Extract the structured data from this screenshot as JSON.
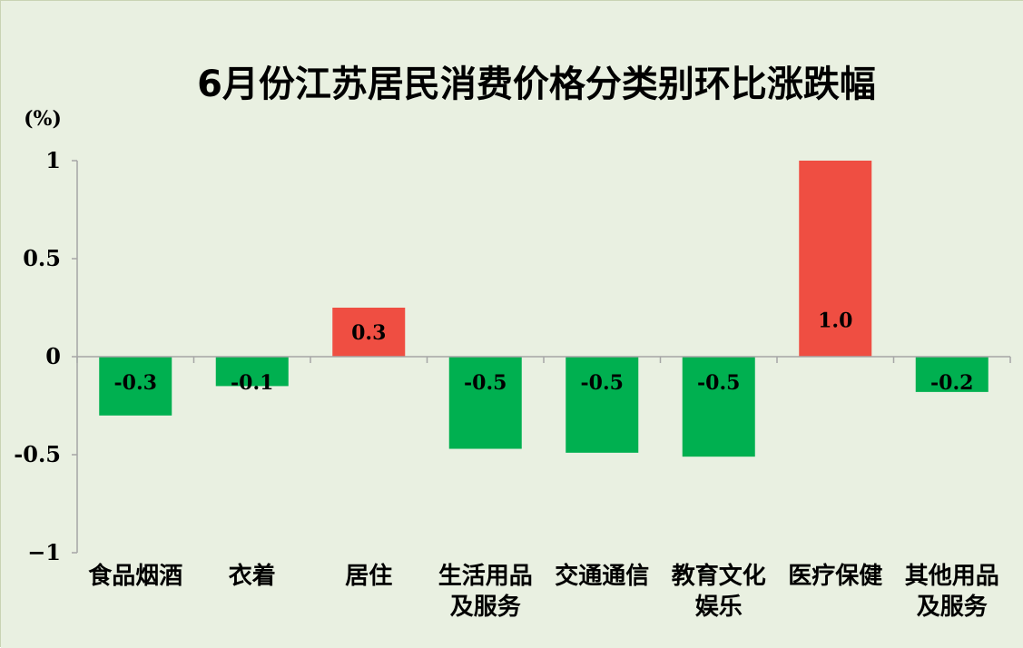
{
  "chart_data": {
    "type": "bar",
    "title": "6月份江苏居民消费价格分类别环比涨跌幅",
    "ylabel": "(%)",
    "categories": [
      [
        "食品烟酒"
      ],
      [
        "衣着"
      ],
      [
        "居住"
      ],
      [
        "生活用品",
        "及服务"
      ],
      [
        "交通通信"
      ],
      [
        "教育文化",
        "娱乐"
      ],
      [
        "医疗保健"
      ],
      [
        "其他用品",
        "及服务"
      ]
    ],
    "values": [
      -0.3,
      -0.15,
      0.25,
      -0.47,
      -0.49,
      -0.51,
      1.0,
      -0.18
    ],
    "data_labels": [
      "-0.3",
      "-0.1",
      "0.3",
      "-0.5",
      "-0.5",
      "-0.5",
      "1.0",
      "-0.2"
    ],
    "ylim": [
      -1,
      1
    ],
    "yticks": [
      1,
      0.5,
      0,
      -0.5,
      -1
    ],
    "ytick_labels": [
      "1",
      "0.5",
      "0",
      "-0.5",
      "−1"
    ],
    "grid": false,
    "legend": "none",
    "colors": {
      "positive": "#ef4e42",
      "negative": "#00b050",
      "background": "#e9f0e1",
      "border": "#c9d3b4",
      "axis": "#a6a6a6"
    }
  }
}
